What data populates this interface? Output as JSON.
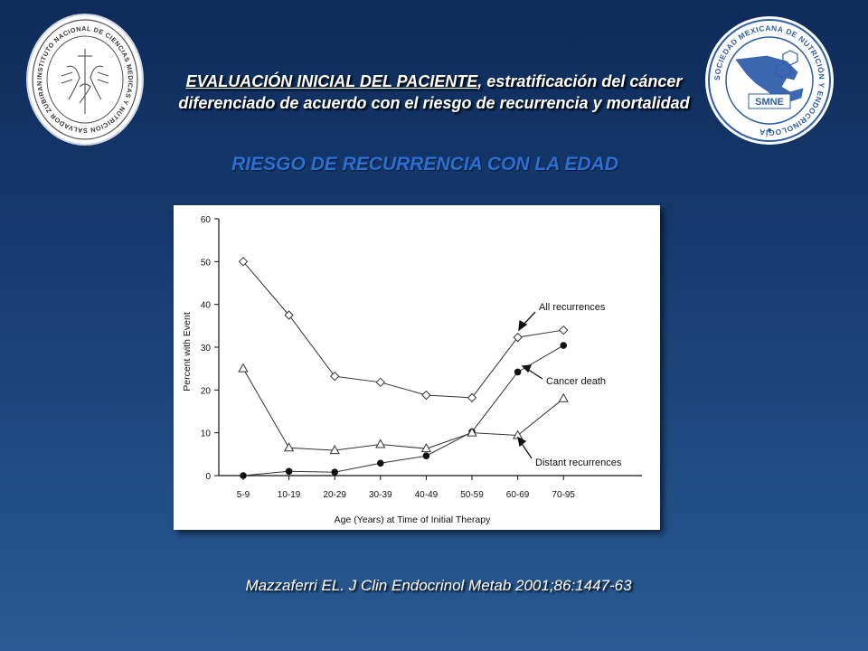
{
  "header": {
    "title_part1": "EVALUACIÓN INICIAL DEL PACIENTE",
    "title_part2": ", estratificación del cáncer",
    "title_line2": "diferenciado de acuerdo con el riesgo de recurrencia y mortalidad"
  },
  "section_title": "RIESGO DE RECURRENCIA CON LA EDAD",
  "logos": {
    "left_text": "INSTITUTO NACIONAL DE CIENCIAS MEDICAS Y NUTRICION SALVADOR ZUBIRAN",
    "right_ring_text": "SOCIEDAD MEXICANA DE NUTRICIÓN Y ENDOCRINOLOGÍA",
    "right_center_text": "SMNE"
  },
  "chart_data": {
    "type": "line",
    "categories": [
      "5-9",
      "10-19",
      "20-29",
      "30-39",
      "40-49",
      "50-59",
      "60-69",
      "70-95"
    ],
    "xlabel": "Age (Years) at Time of Initial Therapy",
    "ylabel": "Percent with Event",
    "ylim": [
      0,
      60
    ],
    "yticks": [
      "0",
      "10",
      "20",
      "30",
      "40",
      "50",
      "60"
    ],
    "grid": false,
    "series": [
      {
        "name": "All recurrences",
        "marker": "diamond",
        "values": [
          50,
          37.5,
          23.2,
          21.8,
          18.8,
          18.2,
          32.3,
          34
        ]
      },
      {
        "name": "Cancer death",
        "marker": "filled-circle",
        "values": [
          0,
          1,
          0.8,
          2.9,
          4.6,
          10.2,
          24.2,
          30.4
        ]
      },
      {
        "name": "Distant recurrences",
        "marker": "triangle",
        "values": [
          25,
          6.5,
          5.9,
          7.3,
          6.3,
          10,
          9.4,
          18
        ]
      }
    ]
  },
  "citation": "Mazzaferri EL. J Clin Endocrinol Metab 2001;86:1447-63"
}
